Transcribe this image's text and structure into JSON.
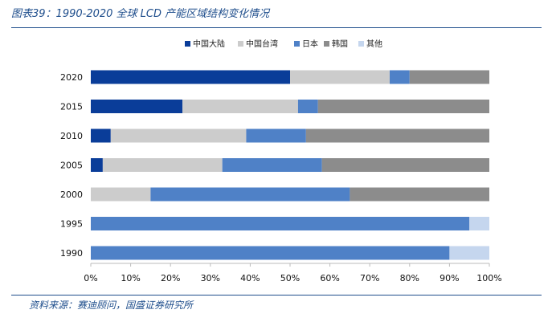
{
  "header": {
    "title": "图表39：1990-2020 全球 LCD 产能区域结构变化情况"
  },
  "footer": {
    "source": "资料来源：赛迪顾问，国盛证券研究所"
  },
  "chart_data": {
    "type": "bar",
    "orientation": "horizontal",
    "stacked": true,
    "categories": [
      "2020",
      "2015",
      "2010",
      "2005",
      "2000",
      "1995",
      "1990"
    ],
    "series": [
      {
        "name": "中国大陆",
        "color": "#0a3d99",
        "values": [
          50,
          23,
          5,
          3,
          0,
          0,
          0
        ]
      },
      {
        "name": "中国台湾",
        "color": "#cccccc",
        "values": [
          25,
          29,
          34,
          30,
          15,
          0,
          0
        ]
      },
      {
        "name": "日本",
        "color": "#4f81c7",
        "values": [
          5,
          5,
          15,
          25,
          50,
          95,
          90
        ]
      },
      {
        "name": "韩国",
        "color": "#8c8c8c",
        "values": [
          20,
          43,
          46,
          42,
          35,
          0,
          0
        ]
      },
      {
        "name": "其他",
        "color": "#c5d6ee",
        "values": [
          0,
          0,
          0,
          0,
          0,
          5,
          10
        ]
      }
    ],
    "xlim": [
      0,
      100
    ],
    "xticks": [
      "0%",
      "10%",
      "20%",
      "30%",
      "40%",
      "50%",
      "60%",
      "70%",
      "80%",
      "90%",
      "100%"
    ],
    "legend_position": "top-center",
    "grid": false
  }
}
